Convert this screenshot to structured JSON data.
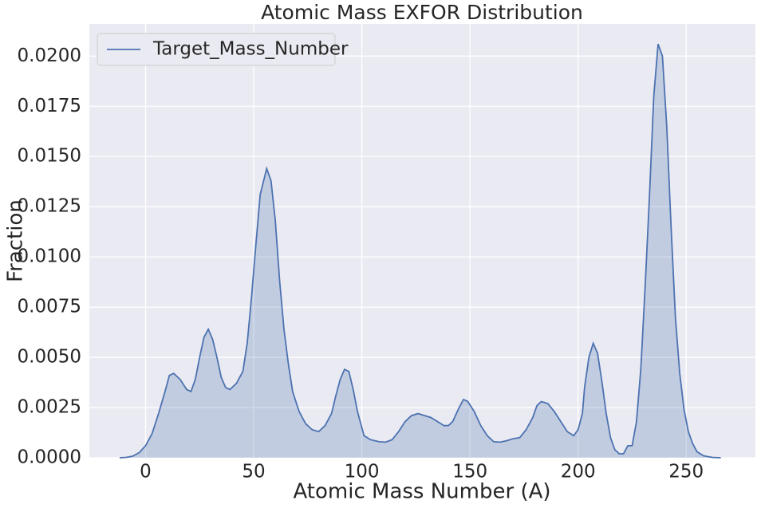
{
  "chart_data": {
    "type": "area",
    "title": "Atomic Mass EXFOR Distribution",
    "xlabel": "Atomic Mass Number (A)",
    "ylabel": "Fraction",
    "xlim": [
      -26,
      282
    ],
    "ylim": [
      0,
      0.0216
    ],
    "xticks": [
      0,
      50,
      100,
      150,
      200,
      250
    ],
    "yticks": [
      {
        "value": 0,
        "label": "0.0000"
      },
      0.0025,
      {
        "value": 0.005,
        "label": "0.0050"
      },
      0.0075,
      {
        "value": 0.01,
        "label": "0.0100"
      },
      0.0125,
      {
        "value": 0.015,
        "label": "0.0150"
      },
      0.0175,
      {
        "value": 0.02,
        "label": "0.0200"
      }
    ],
    "grid": true,
    "legend": "upper left",
    "series": [
      {
        "name": "Target_Mass_Number",
        "color": "#4c72b0",
        "x": [
          -12,
          -9,
          -6,
          -3,
          0,
          3,
          6,
          9,
          11,
          13,
          16,
          19,
          21,
          23,
          25,
          27,
          29,
          31,
          33,
          35,
          37,
          39,
          42,
          45,
          47,
          49,
          51,
          53,
          56,
          58,
          60,
          62,
          64,
          66,
          68,
          71,
          74,
          77,
          80,
          83,
          86,
          88,
          90,
          92,
          94,
          96,
          98,
          101,
          104,
          108,
          111,
          114,
          117,
          120,
          123,
          126,
          129,
          132,
          135,
          138,
          140,
          142,
          145,
          147,
          149,
          152,
          155,
          158,
          161,
          164,
          167,
          170,
          173,
          176,
          179,
          181,
          183,
          186,
          189,
          192,
          195,
          198,
          200,
          202,
          203,
          205,
          207,
          209,
          211,
          213,
          215,
          217,
          219,
          221,
          223,
          225,
          227,
          229,
          231,
          233,
          235,
          237,
          239,
          241,
          243,
          245,
          247,
          249,
          251,
          253,
          255,
          258,
          262,
          266
        ],
        "values": [
          0,
          2e-05,
          8e-05,
          0.00025,
          0.0006,
          0.0012,
          0.0022,
          0.0033,
          0.0041,
          0.0042,
          0.0039,
          0.0034,
          0.0033,
          0.0039,
          0.005,
          0.006,
          0.0064,
          0.0059,
          0.005,
          0.004,
          0.0035,
          0.0034,
          0.0037,
          0.0043,
          0.0057,
          0.008,
          0.0106,
          0.0131,
          0.0144,
          0.0138,
          0.0118,
          0.0088,
          0.0064,
          0.0047,
          0.0033,
          0.0023,
          0.0017,
          0.0014,
          0.0013,
          0.0016,
          0.0022,
          0.0031,
          0.0039,
          0.0044,
          0.0043,
          0.0034,
          0.0023,
          0.0011,
          0.0009,
          0.0008,
          0.00078,
          0.0009,
          0.0013,
          0.0018,
          0.0021,
          0.0022,
          0.0021,
          0.002,
          0.0018,
          0.0016,
          0.0016,
          0.0018,
          0.0025,
          0.0029,
          0.0028,
          0.0023,
          0.0016,
          0.0011,
          0.0008,
          0.00078,
          0.00085,
          0.00095,
          0.001,
          0.0014,
          0.002,
          0.0026,
          0.0028,
          0.0027,
          0.0023,
          0.0018,
          0.0013,
          0.0011,
          0.0014,
          0.0022,
          0.0035,
          0.005,
          0.0057,
          0.0052,
          0.0038,
          0.0022,
          0.001,
          0.0004,
          0.0002,
          0.0002,
          0.0006,
          0.0006,
          0.0018,
          0.0044,
          0.0085,
          0.013,
          0.018,
          0.0206,
          0.02,
          0.0165,
          0.0115,
          0.007,
          0.0042,
          0.0024,
          0.0013,
          0.0007,
          0.0003,
          0.0001,
          2e-05,
          0
        ]
      }
    ]
  }
}
